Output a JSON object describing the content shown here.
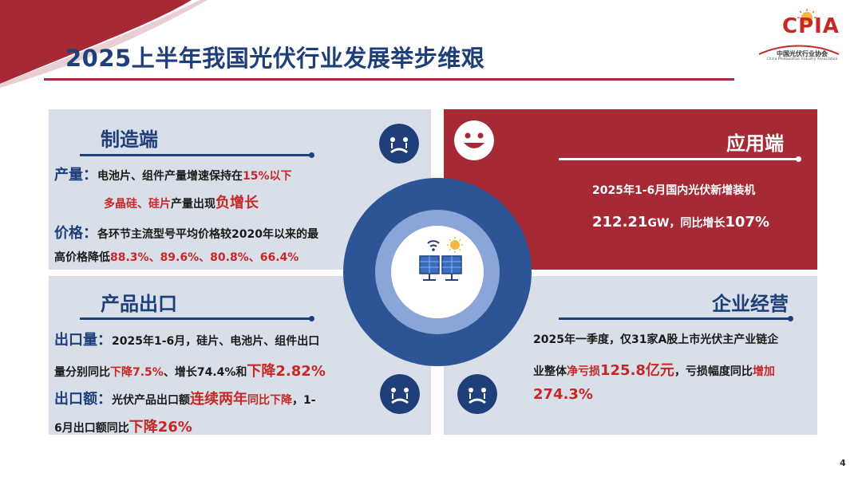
{
  "header": {
    "title": "2025上半年我国光伏行业发展举步维艰",
    "logo_text": "CPIA",
    "logo_cn": "中国光伏行业协会",
    "logo_en": "China Photovoltaic Industry Association"
  },
  "manufacturing": {
    "title": "制造端",
    "output_label": "产量：",
    "output_line1_a": "电池片、组件产量增速保持在",
    "output_line1_b": "15%以下",
    "output_line2_a": "多晶硅、硅片",
    "output_line2_b": "产量出现",
    "output_line2_c": "负增长",
    "price_label": "价格：",
    "price_line1": "各环节主流型号平均价格较2020年以来的最",
    "price_line2_a": "高价格降低",
    "price_line2_b": "88.3%、89.6%、80.8%、66.4%"
  },
  "application": {
    "title": "应用端",
    "line1": "2025年1-6月国内光伏新增装机",
    "line2_a": "212.21",
    "line2_b": "GW，同比增长",
    "line2_c": "107%"
  },
  "export": {
    "title": "产品出口",
    "volume_label": "出口量：",
    "volume_line1": "2025年1-6月，硅片、电池片、组件出口",
    "volume_line2_a": "量分别同比",
    "volume_line2_b": "下降7.5%",
    "volume_line2_c": "、增长74.4%和",
    "volume_line2_d": "下降2.82%",
    "value_label": "出口额：",
    "value_line1_a": "光伏产品出口额",
    "value_line1_b": "连续两年",
    "value_line1_c": "同比下降",
    "value_line1_d": "，1-",
    "value_line2_a": "6月出口额同比",
    "value_line2_b": "下降26%"
  },
  "operations": {
    "title": "企业经营",
    "line1": "2025年一季度，仅31家A股上市光伏主产业链企",
    "line2_a": "业整体",
    "line2_b": "净亏损",
    "line2_c": "125.8亿元",
    "line2_d": "，亏损幅度同比",
    "line2_e": "增加",
    "line3": "274.3%"
  },
  "icons": {
    "sad_face": "sad-face-icon",
    "happy_face": "happy-face-icon",
    "solar": "solar-panel-icon"
  },
  "colors": {
    "navy": "#1f3f7a",
    "crimson": "#a52a36",
    "panel_gray": "#d9dfe8",
    "highlight_red": "#c62828"
  },
  "page_number": "4"
}
